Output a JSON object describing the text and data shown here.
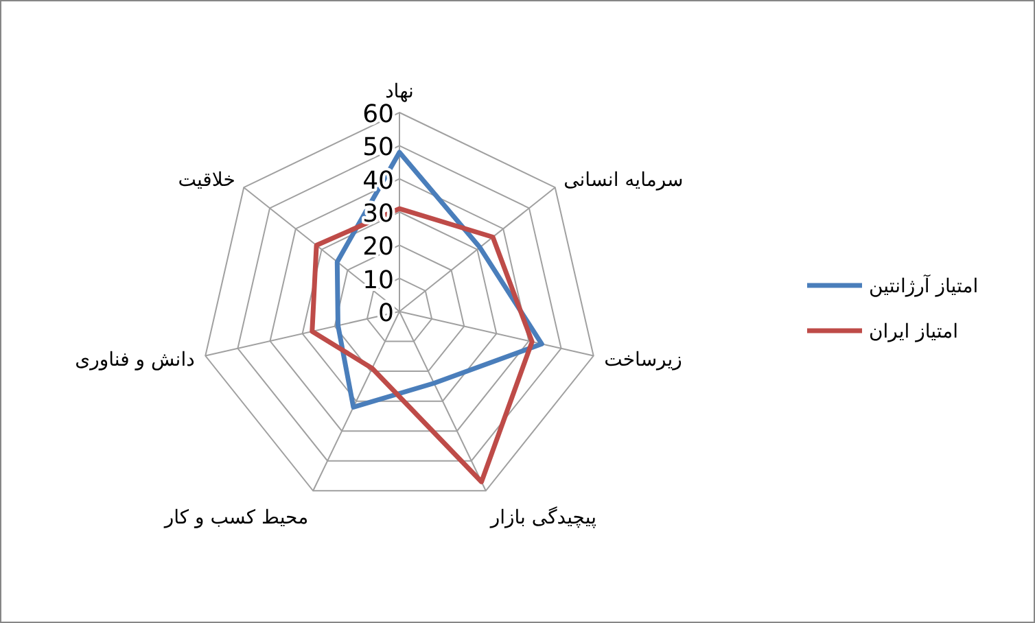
{
  "chart_data": {
    "type": "radar",
    "categories": [
      "نهاد",
      "سرمایه انسانی",
      "زیرساخت",
      "پیچیدگی بازار",
      "محیط کسب و کار",
      "دانش و فناوری",
      "خلاقیت"
    ],
    "series": [
      {
        "name": "امتیاز آرژانتین",
        "color": "#4a7ebb",
        "values": [
          48,
          31,
          44,
          24,
          32,
          19,
          24
        ]
      },
      {
        "name": "امتیاز ایران",
        "color": "#be4b48",
        "values": [
          31,
          36,
          41,
          57,
          19,
          27,
          32
        ]
      }
    ],
    "ylim": [
      0,
      60
    ],
    "yticks": [
      0,
      10,
      20,
      30,
      40,
      50,
      60
    ],
    "grid": true,
    "legend": "right",
    "marker": "none"
  }
}
